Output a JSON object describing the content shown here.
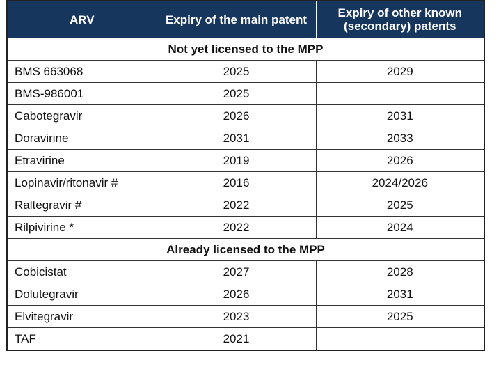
{
  "headers": {
    "arv": "ARV",
    "main_patent": "Expiry of the main patent",
    "other_patents": "Expiry of other known (secondary) patents"
  },
  "sections": [
    {
      "title": "Not yet licensed to the MPP",
      "rows": [
        {
          "arv": "BMS 663068",
          "main": "2025",
          "other": "2029"
        },
        {
          "arv": "BMS-986001",
          "main": "2025",
          "other": ""
        },
        {
          "arv": "Cabotegravir",
          "main": "2026",
          "other": "2031"
        },
        {
          "arv": "Doravirine",
          "main": "2031",
          "other": "2033"
        },
        {
          "arv": "Etravirine",
          "main": "2019",
          "other": "2026"
        },
        {
          "arv": "Lopinavir/ritonavir #",
          "main": "2016",
          "other": "2024/2026"
        },
        {
          "arv": "Raltegravir #",
          "main": "2022",
          "other": "2025"
        },
        {
          "arv": "Rilpivirine *",
          "main": "2022",
          "other": "2024"
        }
      ]
    },
    {
      "title": "Already licensed to the MPP",
      "rows": [
        {
          "arv": "Cobicistat",
          "main": "2027",
          "other": "2028"
        },
        {
          "arv": "Dolutegravir",
          "main": "2026",
          "other": "2031"
        },
        {
          "arv": "Elvitegravir",
          "main": "2023",
          "other": "2025"
        },
        {
          "arv": "TAF",
          "main": "2021",
          "other": ""
        }
      ]
    }
  ]
}
